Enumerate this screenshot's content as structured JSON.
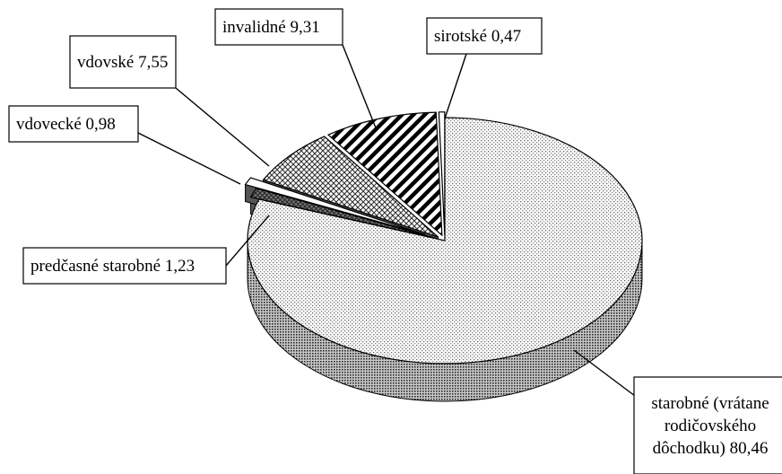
{
  "chart_data": {
    "type": "pie",
    "style": "3D exploded pie, black-and-white patterns",
    "title": "",
    "slices": [
      {
        "name": "starobné (vrátane rodičovského dôchodku)",
        "value": 80.46,
        "label_lines": [
          "starobné (vrátane",
          "rodičovského",
          "dôchodku)  80,46"
        ],
        "pattern": "dots"
      },
      {
        "name": "predčasné starobné",
        "value": 1.23,
        "label_lines": [
          "predčasné starobné 1,23"
        ],
        "pattern": "crosshatch"
      },
      {
        "name": "vdovecké",
        "value": 0.98,
        "label_lines": [
          "vdovecké 0,98"
        ],
        "pattern": "white"
      },
      {
        "name": "vdovské",
        "value": 7.55,
        "label_lines": [
          "vdovské 7,55"
        ],
        "pattern": "diamonds"
      },
      {
        "name": "invalidné",
        "value": 9.31,
        "label_lines": [
          "invalidné 9,31"
        ],
        "pattern": "diagonal-stripes"
      },
      {
        "name": "sirotské",
        "value": 0.47,
        "label_lines": [
          "sirotské 0,47"
        ],
        "pattern": "white"
      }
    ],
    "legend": "none"
  }
}
